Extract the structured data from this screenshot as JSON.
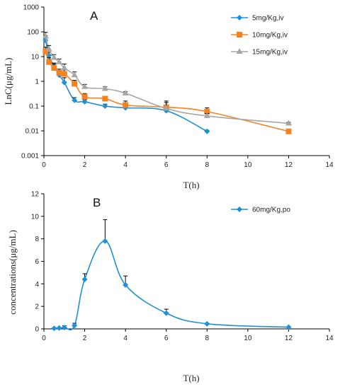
{
  "chart_data": [
    {
      "panel_label": "A",
      "type": "line",
      "yscale": "log",
      "xlabel": "T(h)",
      "ylabel": "LnC(μg/mL)",
      "xlim": [
        0,
        14
      ],
      "ylim": [
        0.001,
        1000
      ],
      "xticks": [
        "0",
        "2",
        "4",
        "6",
        "8",
        "10",
        "12",
        "14"
      ],
      "yticks": [
        "0.001",
        "0.01",
        "0.1",
        "1",
        "10",
        "100",
        "1000"
      ],
      "legend_position": "top-right",
      "series": [
        {
          "name": "5mg/Kg,iv",
          "color": "#1f8fd6",
          "marker": "diamond",
          "x": [
            0.083,
            0.25,
            0.5,
            0.75,
            1,
            1.5,
            2,
            3,
            4,
            6,
            8
          ],
          "y": [
            45,
            11,
            4,
            1.8,
            0.9,
            0.17,
            0.15,
            0.1,
            0.085,
            0.065,
            0.0095
          ],
          "err": [
            25,
            4,
            1.5,
            0.8,
            0.5,
            0.05,
            0.03,
            0.02,
            0.015,
            0.015,
            0.001
          ]
        },
        {
          "name": "10mg/Kg,iv",
          "color": "#f58220",
          "marker": "square",
          "x": [
            0.083,
            0.25,
            0.5,
            0.75,
            1,
            1.5,
            2,
            3,
            4,
            6,
            8,
            12
          ],
          "y": [
            16,
            6,
            3.5,
            2.2,
            2,
            0.8,
            0.24,
            0.2,
            0.11,
            0.09,
            0.06,
            0.0095
          ],
          "err": [
            8,
            3,
            1.5,
            0.9,
            0.9,
            0.3,
            0.08,
            0.05,
            0.05,
            0.05,
            0.025,
            0.001
          ]
        },
        {
          "name": "15mg/Kg,iv",
          "color": "#a6a6a6",
          "marker": "triangle",
          "x": [
            0.083,
            0.25,
            0.5,
            0.75,
            1,
            1.5,
            2,
            3,
            4,
            6,
            8,
            12
          ],
          "y": [
            65,
            20,
            9,
            6,
            3.5,
            1.8,
            0.6,
            0.5,
            0.33,
            0.08,
            0.04,
            0.02
          ],
          "err": [
            30,
            8,
            3,
            2,
            1.5,
            0.6,
            0.15,
            0.1,
            0.05,
            0.08,
            0.01,
            0.002
          ]
        }
      ]
    },
    {
      "panel_label": "B",
      "type": "line",
      "xlabel": "T(h)",
      "ylabel": "concentrations(μg/mL)",
      "xlim": [
        0,
        14
      ],
      "ylim": [
        0,
        12
      ],
      "xticks": [
        "0",
        "2",
        "4",
        "6",
        "8",
        "10",
        "12",
        "14"
      ],
      "yticks": [
        "0",
        "2",
        "4",
        "6",
        "8",
        "10",
        "12"
      ],
      "legend_position": "top-right",
      "series": [
        {
          "name": "60mg/Kg,po",
          "color": "#1f8fd6",
          "marker": "diamond",
          "x": [
            0.5,
            0.75,
            1,
            1.5,
            2,
            3,
            4,
            6,
            8,
            12
          ],
          "y": [
            0.05,
            0.08,
            0.12,
            0.3,
            4.4,
            7.8,
            3.9,
            1.4,
            0.45,
            0.15
          ],
          "err": [
            0.02,
            0.03,
            0.15,
            0.2,
            0.5,
            1.9,
            0.8,
            0.35,
            0.05,
            0.02
          ]
        }
      ]
    }
  ]
}
